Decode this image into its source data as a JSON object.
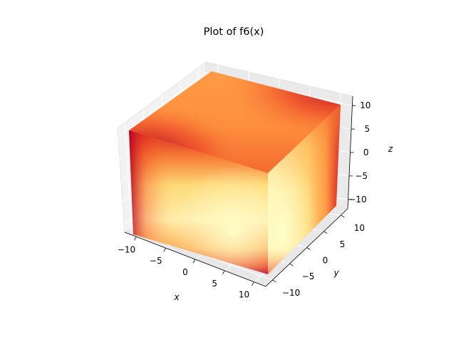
{
  "chart_data": {
    "type": "scatter3d",
    "title": "Plot of f6(x)",
    "xlabel": "x",
    "ylabel": "y",
    "zlabel": "z",
    "xlim": [
      -12,
      12
    ],
    "ylim": [
      -12,
      12
    ],
    "zlim": [
      -12,
      12
    ],
    "xticks": [
      -10,
      -5,
      0,
      5,
      10
    ],
    "yticks": [
      -10,
      -5,
      0,
      5,
      10
    ],
    "zticks": [
      -10,
      -5,
      0,
      5,
      10
    ],
    "tick_labels": {
      "x": [
        "−10",
        "−5",
        "0",
        "5",
        "10"
      ],
      "y": [
        "−10",
        "−5",
        "0",
        "5",
        "10"
      ],
      "z": [
        "−10",
        "−5",
        "0",
        "5",
        "10"
      ]
    },
    "colormap": "YlOrRd",
    "colormap_colors": [
      "#ffffcc",
      "#feb24c",
      "#fd8d3c",
      "#e31a1c",
      "#800026"
    ],
    "data_range": {
      "x": [
        -10,
        10
      ],
      "y": [
        -10,
        10
      ],
      "z": [
        -10,
        10
      ]
    },
    "grid": true,
    "pane_color": "#f2f2f2"
  }
}
